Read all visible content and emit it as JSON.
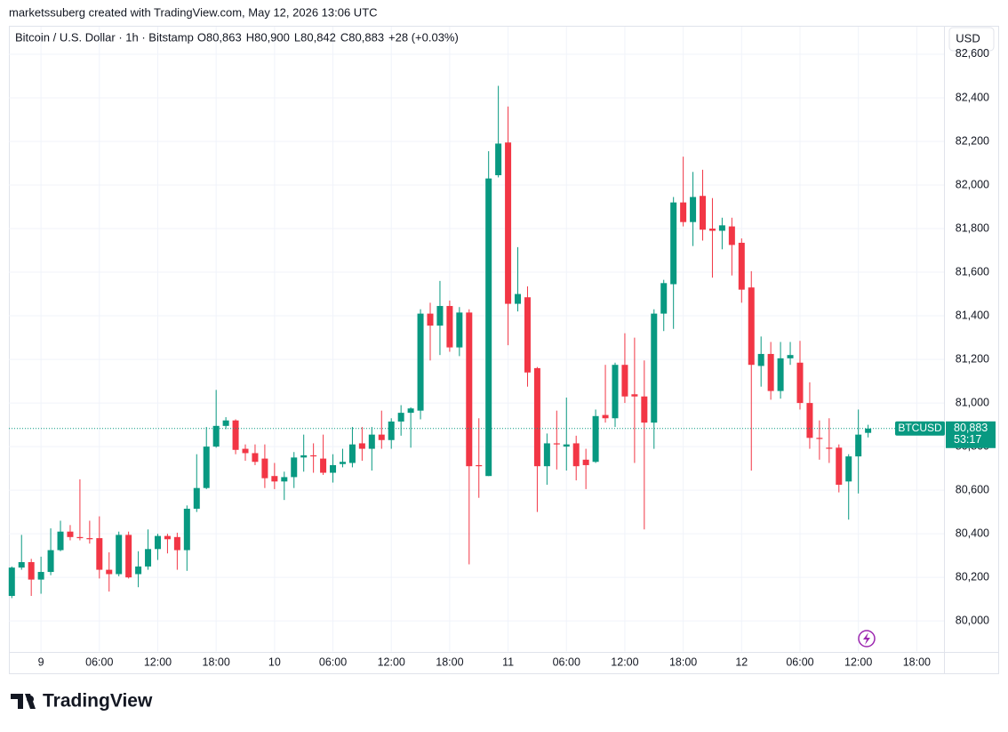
{
  "chart_data": {
    "type": "candlestick",
    "attribution": "marketssuberg created with TradingView.com, May 12, 2026 13:06 UTC",
    "symbol_title": "Bitcoin / U.S. Dollar · 1h · Bitstamp",
    "ohlc_header": [
      {
        "label": "O",
        "value": "80,863"
      },
      {
        "label": "H",
        "value": "80,900"
      },
      {
        "label": "L",
        "value": "80,842"
      },
      {
        "label": "C",
        "value": "80,883"
      }
    ],
    "change": "+28 (+0.03%)",
    "currency_button": "USD",
    "price_tag": {
      "symbol": "BTCUSD",
      "price": "80,883",
      "countdown": "53:17"
    },
    "brand": "TradingView",
    "up_color": "#089981",
    "down_color": "#f23645",
    "grid": true,
    "xlim": [
      -0.3,
      95.8
    ],
    "xticks": [
      {
        "value": 3,
        "label": "9"
      },
      {
        "value": 9,
        "label": "06:00"
      },
      {
        "value": 15,
        "label": "12:00"
      },
      {
        "value": 21,
        "label": "18:00"
      },
      {
        "value": 27,
        "label": "10"
      },
      {
        "value": 33,
        "label": "06:00"
      },
      {
        "value": 39,
        "label": "12:00"
      },
      {
        "value": 45,
        "label": "18:00"
      },
      {
        "value": 51,
        "label": "11"
      },
      {
        "value": 57,
        "label": "06:00"
      },
      {
        "value": 63,
        "label": "12:00"
      },
      {
        "value": 69,
        "label": "18:00"
      },
      {
        "value": 75,
        "label": "12"
      },
      {
        "value": 81,
        "label": "06:00"
      },
      {
        "value": 87,
        "label": "12:00"
      },
      {
        "value": 93,
        "label": "18:00"
      }
    ],
    "ylim": [
      79860,
      82610
    ],
    "yticks": [
      {
        "value": 80000,
        "label": "80,000"
      },
      {
        "value": 80200,
        "label": "80,200"
      },
      {
        "value": 80400,
        "label": "80,400"
      },
      {
        "value": 80600,
        "label": "80,600"
      },
      {
        "value": 80800,
        "label": "80,800"
      },
      {
        "value": 81000,
        "label": "81,000"
      },
      {
        "value": 81200,
        "label": "81,200"
      },
      {
        "value": 81400,
        "label": "81,400"
      },
      {
        "value": 81600,
        "label": "81,600"
      },
      {
        "value": 81800,
        "label": "81,800"
      },
      {
        "value": 82000,
        "label": "82,000"
      },
      {
        "value": 82200,
        "label": "82,200"
      },
      {
        "value": 82400,
        "label": "82,400"
      },
      {
        "value": 82600,
        "label": "82,600"
      }
    ],
    "open": [
      80115,
      80245,
      80270,
      80190,
      80225,
      80325,
      80410,
      80385,
      80380,
      80380,
      80235,
      80215,
      80395,
      80215,
      80250,
      80330,
      80390,
      80385,
      80325,
      80515,
      80610,
      80800,
      80895,
      80920,
      80790,
      80770,
      80745,
      80665,
      80640,
      80660,
      80750,
      80760,
      80745,
      80680,
      80720,
      80725,
      80815,
      80790,
      80855,
      80830,
      80915,
      80955,
      80965,
      81410,
      81355,
      81445,
      81255,
      81415,
      80715,
      80665,
      82045,
      82195,
      81455,
      81485,
      81160,
      80710,
      80815,
      80800,
      80815,
      80740,
      80730,
      80945,
      80930,
      81175,
      81040,
      81030,
      80910,
      81410,
      81545,
      81920,
      81830,
      81950,
      81800,
      81790,
      81810,
      81735,
      81530,
      81170,
      81225,
      81055,
      81205,
      81185,
      81000,
      80840,
      80795,
      80795,
      80640,
      80755,
      80863
    ],
    "high": [
      80250,
      80395,
      80285,
      80295,
      80425,
      80460,
      80440,
      80650,
      80460,
      80480,
      80315,
      80410,
      80410,
      80320,
      80420,
      80400,
      80400,
      80405,
      80530,
      80765,
      80890,
      81060,
      80935,
      80925,
      80810,
      80810,
      80810,
      80725,
      80685,
      80775,
      80855,
      80815,
      80855,
      80765,
      80790,
      80890,
      80890,
      80890,
      80965,
      80930,
      80990,
      80980,
      81430,
      81460,
      81560,
      81470,
      81440,
      81430,
      80930,
      82155,
      82455,
      82360,
      81715,
      81535,
      81165,
      80860,
      80965,
      81025,
      80850,
      80790,
      80970,
      81175,
      81185,
      81320,
      81300,
      81195,
      81430,
      81565,
      81945,
      82130,
      82060,
      82070,
      81940,
      81850,
      81850,
      81755,
      81605,
      81305,
      81280,
      81280,
      81280,
      81285,
      81095,
      80920,
      80930,
      80810,
      80765,
      80970,
      80900
    ],
    "low": [
      80105,
      80235,
      80115,
      80125,
      80210,
      80320,
      80370,
      80370,
      80355,
      80195,
      80135,
      80205,
      80195,
      80155,
      80235,
      80280,
      80310,
      80235,
      80230,
      80500,
      80605,
      80795,
      80880,
      80765,
      80735,
      80715,
      80610,
      80605,
      80555,
      80610,
      80685,
      80680,
      80670,
      80635,
      80705,
      80705,
      80735,
      80690,
      80790,
      80790,
      80850,
      80795,
      80925,
      81195,
      81220,
      81235,
      81215,
      80260,
      80565,
      80665,
      82035,
      81265,
      81420,
      81075,
      80500,
      80625,
      80695,
      80690,
      80645,
      80605,
      80725,
      80910,
      80890,
      81000,
      80725,
      80420,
      80790,
      81330,
      81340,
      81810,
      81720,
      81745,
      81575,
      81705,
      81585,
      81460,
      80690,
      81075,
      81015,
      81020,
      81175,
      80970,
      80790,
      80740,
      80725,
      80590,
      80465,
      80585,
      80842
    ],
    "close": [
      80245,
      80270,
      80190,
      80225,
      80325,
      80410,
      80385,
      80380,
      80375,
      80235,
      80215,
      80395,
      80200,
      80250,
      80330,
      80390,
      80375,
      80325,
      80515,
      80610,
      80800,
      80895,
      80920,
      80785,
      80770,
      80730,
      80655,
      80640,
      80660,
      80750,
      80760,
      80755,
      80680,
      80715,
      80730,
      80810,
      80790,
      80855,
      80830,
      80915,
      80955,
      80975,
      81410,
      81355,
      81445,
      81255,
      81415,
      80710,
      80710,
      82030,
      82190,
      81455,
      81500,
      81140,
      80710,
      80815,
      80810,
      80810,
      80710,
      80715,
      80940,
      80930,
      81175,
      81030,
      81030,
      80910,
      81410,
      81550,
      81920,
      81830,
      81945,
      81795,
      81790,
      81815,
      81725,
      81520,
      81175,
      81225,
      81055,
      81205,
      81220,
      81000,
      80840,
      80835,
      80790,
      80625,
      80755,
      80855,
      80883
    ]
  }
}
